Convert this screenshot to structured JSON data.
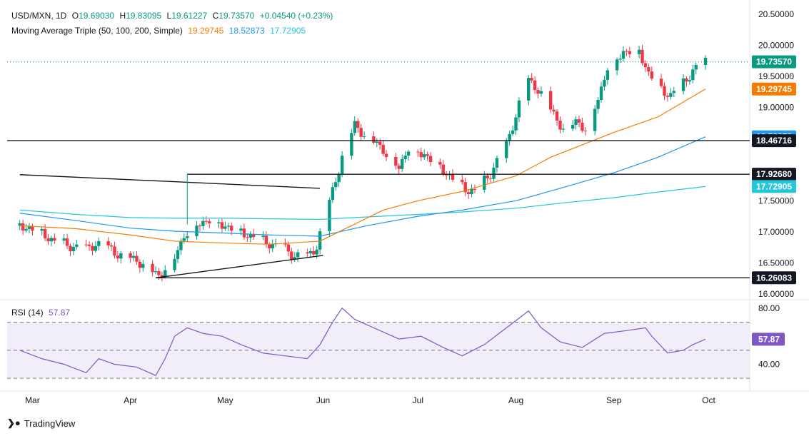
{
  "header": {
    "symbol": "USD/MXN, 1D",
    "open_label": "O",
    "open": "19.69030",
    "high_label": "H",
    "high": "19.83095",
    "low_label": "L",
    "low": "19.61227",
    "close_label": "C",
    "close": "19.73570",
    "change": "+0.04540 (+0.23%)",
    "ma_title": "Moving Average Triple (50, 100, 200, Simple)",
    "ma50_value": "19.29745",
    "ma100_value": "18.52873",
    "ma200_value": "17.72905"
  },
  "rsi_header": {
    "title": "RSI (14)",
    "value": "57.87"
  },
  "brand": {
    "name": "TradingView"
  },
  "colors": {
    "up": "#089981",
    "down": "#f23645",
    "ma50": "#f57c00",
    "ma100": "#2196f3",
    "ma200": "#26c6da",
    "rsi": "#7e57c2",
    "rsi_band": "#ede7f6",
    "last_price": "#089981",
    "hline": "#131722"
  },
  "chart_data": [
    {
      "type": "candlestick",
      "title": "USD/MXN, 1D",
      "ylim": [
        16.0,
        20.5
      ],
      "y_ticks": [
        "16.00000",
        "16.50000",
        "17.00000",
        "17.50000",
        "19.00000",
        "19.50000",
        "20.00000",
        "20.50000"
      ],
      "x_ticks": [
        "Mar",
        "Apr",
        "May",
        "Jun",
        "Jul",
        "Aug",
        "Sep",
        "Oct"
      ],
      "last_price": 19.7357,
      "price_labels": [
        {
          "label": "19.73570",
          "value": 19.7357,
          "color": "#089981"
        },
        {
          "label": "19.29745",
          "value": 19.29745,
          "color": "#f57c00"
        },
        {
          "label": "18.52873",
          "value": 18.52873,
          "color": "#2196f3"
        },
        {
          "label": "18.46716",
          "value": 18.46716,
          "color": "#131722"
        },
        {
          "label": "17.92680",
          "value": 17.9268,
          "color": "#131722"
        },
        {
          "label": "17.72905",
          "value": 17.72905,
          "color": "#26c6da"
        },
        {
          "label": "16.26083",
          "value": 16.26083,
          "color": "#131722"
        }
      ],
      "horizontal_lines": [
        18.46716,
        17.9268,
        16.26083
      ],
      "trend_lines": [
        {
          "name": "upper trendline",
          "points": [
            [
              "2024-02-26",
              17.92
            ],
            [
              "2024-05-31",
              17.7
            ]
          ]
        },
        {
          "name": "lower trendline",
          "points": [
            [
              "2024-04-09",
              16.26
            ],
            [
              "2024-06-01",
              16.62
            ]
          ]
        }
      ],
      "pivot_line": {
        "x": "2024-04-19",
        "from": 17.12,
        "to": 17.9268
      },
      "candles_close": [
        [
          "2024-02-26",
          17.1
        ],
        [
          "2024-03-01",
          17.05
        ],
        [
          "2024-03-05",
          16.95
        ],
        [
          "2024-03-08",
          16.85
        ],
        [
          "2024-03-13",
          16.78
        ],
        [
          "2024-03-18",
          16.72
        ],
        [
          "2024-03-21",
          16.82
        ],
        [
          "2024-03-26",
          16.72
        ],
        [
          "2024-03-29",
          16.62
        ],
        [
          "2024-04-03",
          16.55
        ],
        [
          "2024-04-08",
          16.38
        ],
        [
          "2024-04-10",
          16.3
        ],
        [
          "2024-04-15",
          16.6
        ],
        [
          "2024-04-18",
          16.95
        ],
        [
          "2024-04-22",
          17.12
        ],
        [
          "2024-04-26",
          17.2
        ],
        [
          "2024-05-01",
          17.1
        ],
        [
          "2024-05-06",
          17.0
        ],
        [
          "2024-05-10",
          16.92
        ],
        [
          "2024-05-15",
          16.82
        ],
        [
          "2024-05-20",
          16.72
        ],
        [
          "2024-05-23",
          16.62
        ],
        [
          "2024-05-27",
          16.6
        ],
        [
          "2024-05-30",
          16.78
        ],
        [
          "2024-06-03",
          17.5
        ],
        [
          "2024-06-05",
          17.85
        ],
        [
          "2024-06-07",
          18.2
        ],
        [
          "2024-06-11",
          18.75
        ],
        [
          "2024-06-14",
          18.55
        ],
        [
          "2024-06-18",
          18.45
        ],
        [
          "2024-06-21",
          18.25
        ],
        [
          "2024-06-25",
          18.05
        ],
        [
          "2024-06-28",
          18.35
        ],
        [
          "2024-07-03",
          18.25
        ],
        [
          "2024-07-08",
          18.05
        ],
        [
          "2024-07-12",
          17.85
        ],
        [
          "2024-07-16",
          17.7
        ],
        [
          "2024-07-19",
          17.65
        ],
        [
          "2024-07-24",
          17.95
        ],
        [
          "2024-07-29",
          18.4
        ],
        [
          "2024-08-02",
          19.05
        ],
        [
          "2024-08-05",
          19.45
        ],
        [
          "2024-08-08",
          19.3
        ],
        [
          "2024-08-13",
          18.9
        ],
        [
          "2024-08-16",
          18.65
        ],
        [
          "2024-08-20",
          18.8
        ],
        [
          "2024-08-23",
          18.65
        ],
        [
          "2024-08-27",
          19.15
        ],
        [
          "2024-08-30",
          19.65
        ],
        [
          "2024-09-04",
          19.9
        ],
        [
          "2024-09-09",
          19.92
        ],
        [
          "2024-09-12",
          19.55
        ],
        [
          "2024-09-16",
          19.3
        ],
        [
          "2024-09-19",
          19.2
        ],
        [
          "2024-09-23",
          19.4
        ],
        [
          "2024-09-26",
          19.6
        ],
        [
          "2024-09-30",
          19.7357
        ]
      ],
      "ma50": [
        [
          "2024-02-26",
          17.1
        ],
        [
          "2024-03-15",
          17.05
        ],
        [
          "2024-04-01",
          16.95
        ],
        [
          "2024-04-15",
          16.85
        ],
        [
          "2024-05-01",
          16.82
        ],
        [
          "2024-05-15",
          16.8
        ],
        [
          "2024-05-31",
          16.85
        ],
        [
          "2024-06-10",
          17.1
        ],
        [
          "2024-06-20",
          17.35
        ],
        [
          "2024-07-01",
          17.5
        ],
        [
          "2024-07-15",
          17.65
        ],
        [
          "2024-08-01",
          17.9
        ],
        [
          "2024-08-12",
          18.2
        ],
        [
          "2024-08-22",
          18.4
        ],
        [
          "2024-09-01",
          18.6
        ],
        [
          "2024-09-15",
          18.85
        ],
        [
          "2024-09-30",
          19.29745
        ]
      ],
      "ma100": [
        [
          "2024-02-26",
          17.3
        ],
        [
          "2024-03-15",
          17.18
        ],
        [
          "2024-04-01",
          17.06
        ],
        [
          "2024-04-15",
          17.01
        ],
        [
          "2024-05-01",
          16.98
        ],
        [
          "2024-05-15",
          16.95
        ],
        [
          "2024-05-31",
          16.93
        ],
        [
          "2024-06-15",
          17.1
        ],
        [
          "2024-07-01",
          17.25
        ],
        [
          "2024-07-15",
          17.35
        ],
        [
          "2024-08-01",
          17.5
        ],
        [
          "2024-08-15",
          17.7
        ],
        [
          "2024-09-01",
          17.95
        ],
        [
          "2024-09-15",
          18.2
        ],
        [
          "2024-09-30",
          18.52873
        ]
      ],
      "ma200": [
        [
          "2024-02-26",
          17.35
        ],
        [
          "2024-03-15",
          17.28
        ],
        [
          "2024-04-01",
          17.23
        ],
        [
          "2024-04-15",
          17.22
        ],
        [
          "2024-05-01",
          17.22
        ],
        [
          "2024-05-15",
          17.21
        ],
        [
          "2024-05-31",
          17.2
        ],
        [
          "2024-06-15",
          17.24
        ],
        [
          "2024-07-01",
          17.28
        ],
        [
          "2024-07-15",
          17.32
        ],
        [
          "2024-08-01",
          17.38
        ],
        [
          "2024-08-15",
          17.46
        ],
        [
          "2024-09-01",
          17.55
        ],
        [
          "2024-09-15",
          17.64
        ],
        [
          "2024-09-30",
          17.72905
        ]
      ]
    },
    {
      "type": "line",
      "title": "RSI (14)",
      "ylim": [
        25,
        85
      ],
      "y_ticks": [
        "40.00",
        "80.00"
      ],
      "bands": [
        30,
        50,
        70
      ],
      "last_value": 57.87,
      "series": [
        {
          "name": "RSI (14)",
          "values": [
            [
              "2024-02-26",
              50
            ],
            [
              "2024-03-04",
              44
            ],
            [
              "2024-03-11",
              40
            ],
            [
              "2024-03-18",
              34
            ],
            [
              "2024-03-22",
              44
            ],
            [
              "2024-03-27",
              40
            ],
            [
              "2024-04-03",
              38
            ],
            [
              "2024-04-09",
              32
            ],
            [
              "2024-04-12",
              44
            ],
            [
              "2024-04-15",
              60
            ],
            [
              "2024-04-19",
              66
            ],
            [
              "2024-04-24",
              62
            ],
            [
              "2024-04-30",
              60
            ],
            [
              "2024-05-06",
              54
            ],
            [
              "2024-05-13",
              48
            ],
            [
              "2024-05-20",
              46
            ],
            [
              "2024-05-27",
              44
            ],
            [
              "2024-05-31",
              54
            ],
            [
              "2024-06-04",
              70
            ],
            [
              "2024-06-07",
              80
            ],
            [
              "2024-06-11",
              72
            ],
            [
              "2024-06-17",
              66
            ],
            [
              "2024-06-25",
              58
            ],
            [
              "2024-07-02",
              60
            ],
            [
              "2024-07-09",
              52
            ],
            [
              "2024-07-15",
              46
            ],
            [
              "2024-07-22",
              54
            ],
            [
              "2024-07-29",
              66
            ],
            [
              "2024-08-05",
              78
            ],
            [
              "2024-08-09",
              66
            ],
            [
              "2024-08-15",
              56
            ],
            [
              "2024-08-22",
              52
            ],
            [
              "2024-08-29",
              62
            ],
            [
              "2024-09-05",
              64
            ],
            [
              "2024-09-11",
              66
            ],
            [
              "2024-09-13",
              60
            ],
            [
              "2024-09-18",
              48
            ],
            [
              "2024-09-23",
              50
            ],
            [
              "2024-09-26",
              54
            ],
            [
              "2024-09-30",
              57.87
            ]
          ]
        }
      ]
    }
  ]
}
